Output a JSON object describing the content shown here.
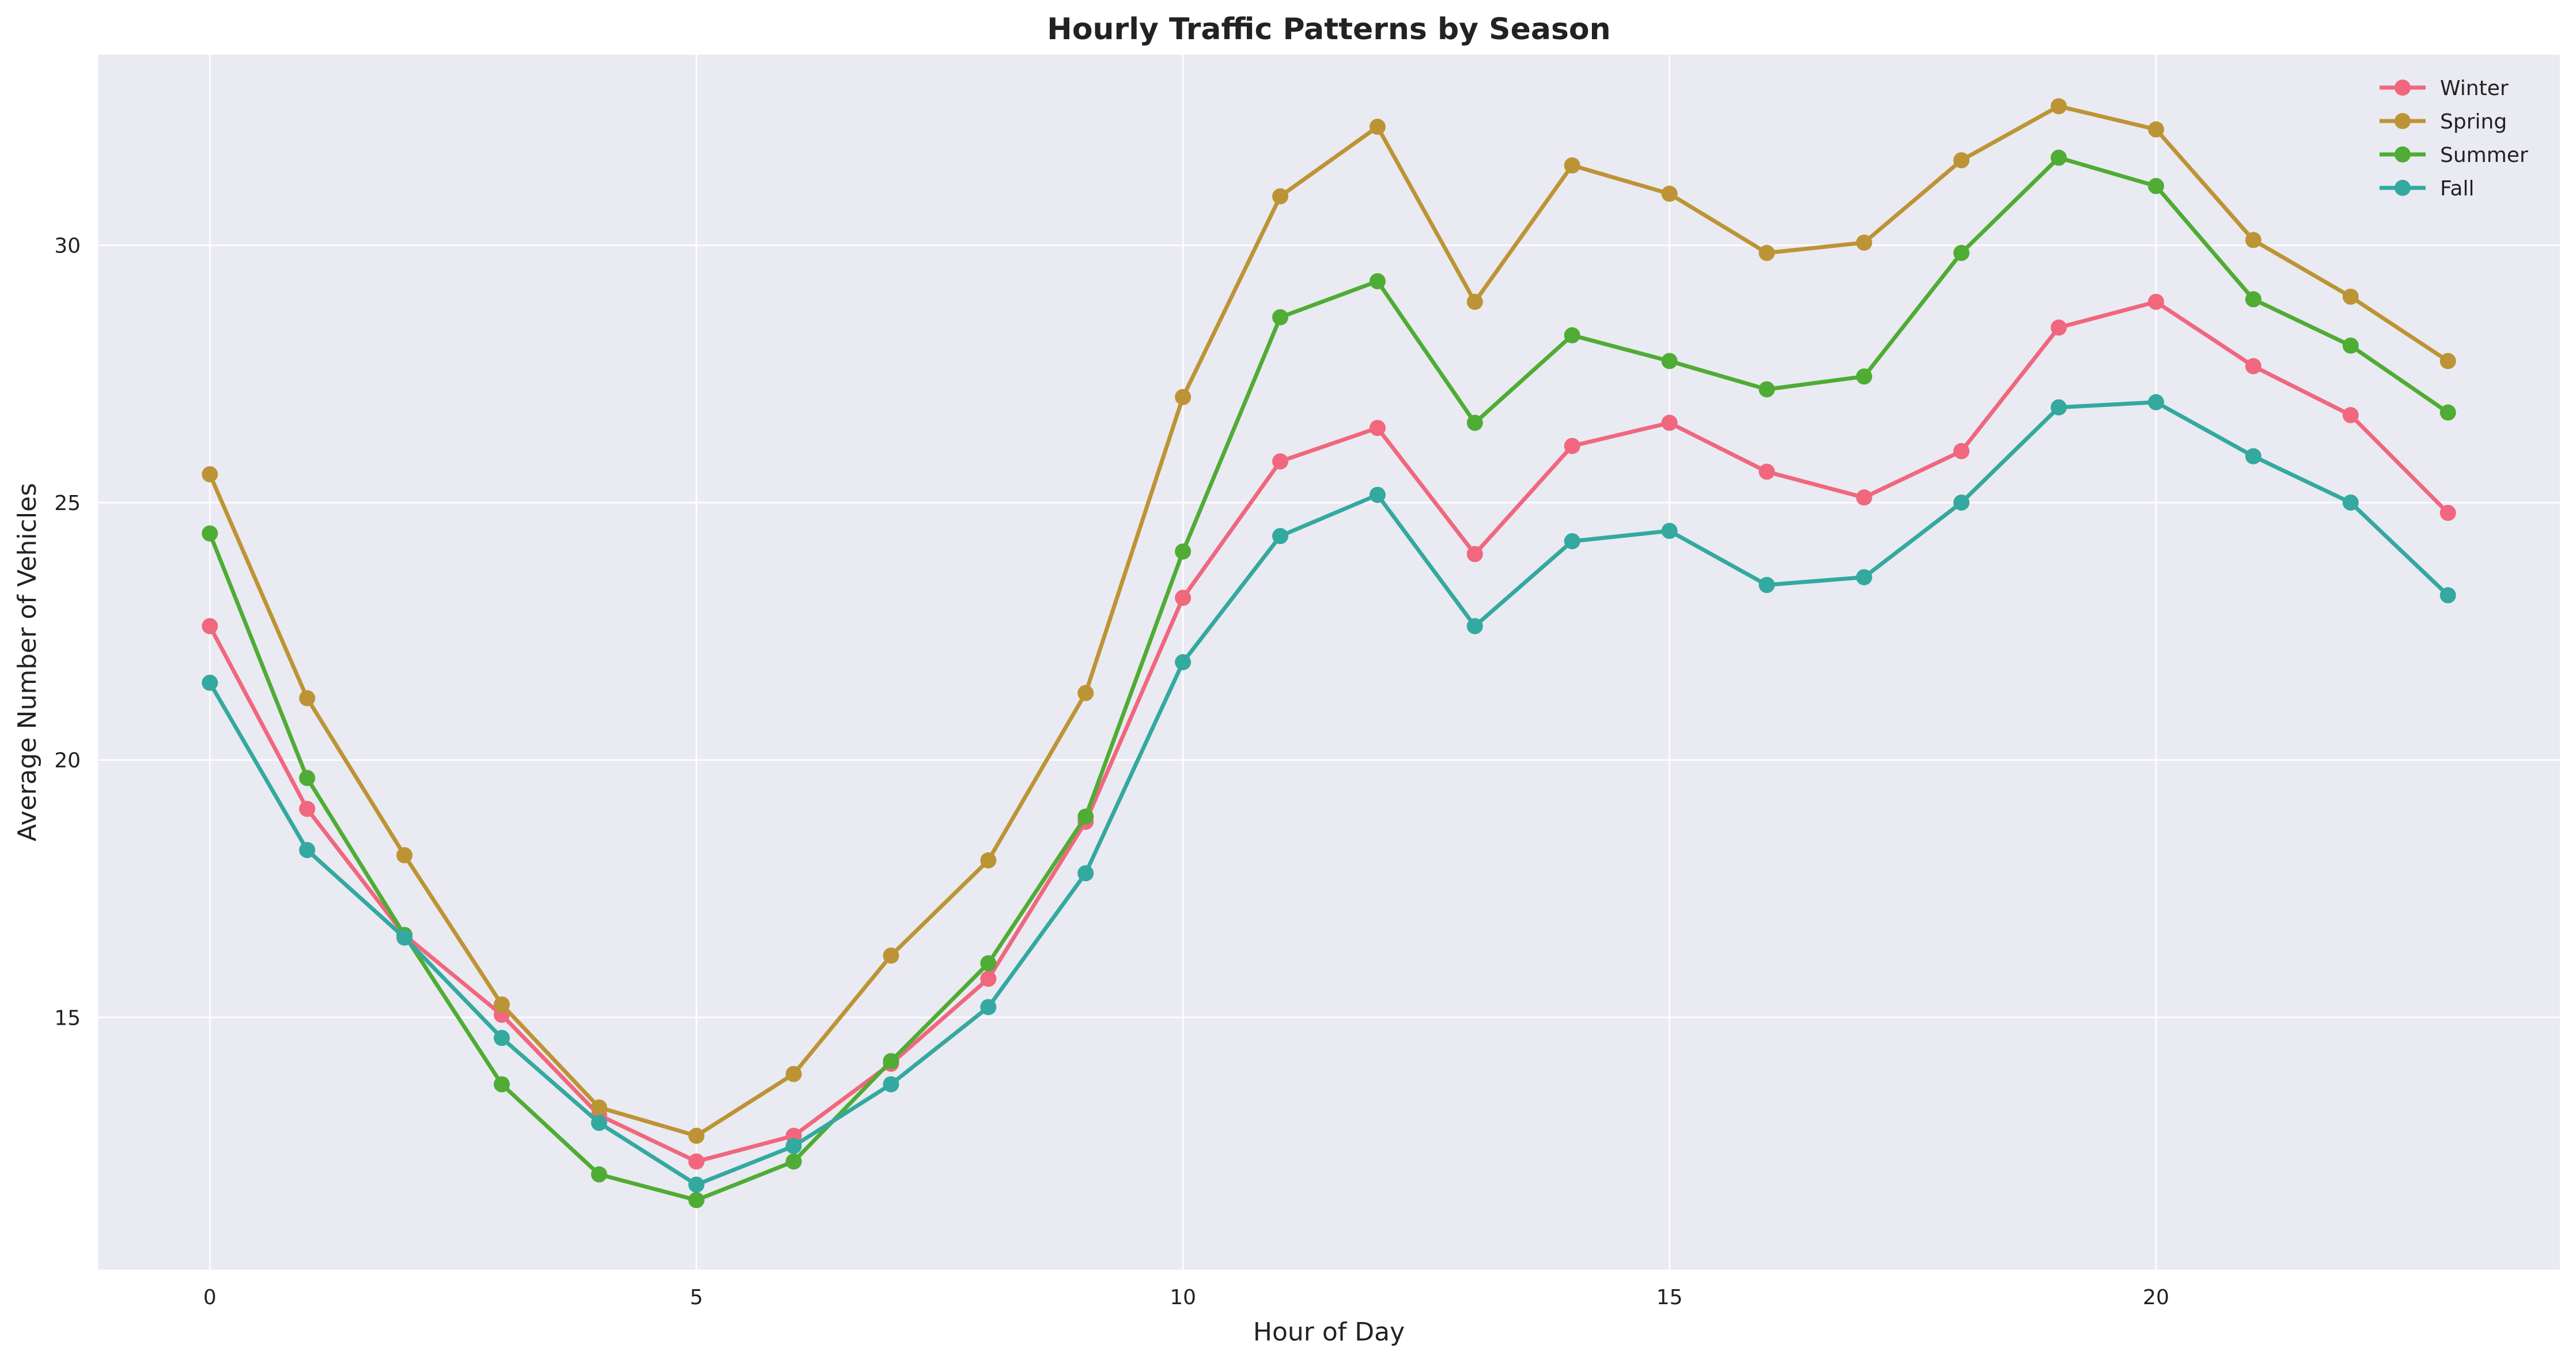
{
  "chart_data": {
    "type": "line",
    "title": "Hourly Traffic Patterns by Season",
    "xlabel": "Hour of Day",
    "ylabel": "Average Number of Vehicles",
    "x": [
      0,
      1,
      2,
      3,
      4,
      5,
      6,
      7,
      8,
      9,
      10,
      11,
      12,
      13,
      14,
      15,
      16,
      17,
      18,
      19,
      20,
      21,
      22,
      23
    ],
    "xlim": [
      -1.15,
      24.15
    ],
    "ylim": [
      10.1,
      33.7
    ],
    "xticks": [
      0,
      5,
      10,
      15,
      20
    ],
    "yticks": [
      15,
      20,
      25,
      30
    ],
    "grid": true,
    "legend_position": "top-right",
    "series": [
      {
        "name": "Winter",
        "color": "#f0677e",
        "values": [
          22.6,
          19.05,
          16.6,
          15.05,
          13.1,
          12.2,
          12.7,
          14.1,
          15.75,
          18.8,
          23.15,
          25.8,
          26.45,
          24.0,
          26.1,
          26.55,
          25.6,
          25.1,
          26.0,
          28.4,
          28.9,
          27.65,
          26.7,
          24.8
        ]
      },
      {
        "name": "Spring",
        "color": "#bd9435",
        "values": [
          25.55,
          21.2,
          18.15,
          15.25,
          13.25,
          12.7,
          13.9,
          16.2,
          18.05,
          21.3,
          27.05,
          30.95,
          32.3,
          28.9,
          31.55,
          31.0,
          29.85,
          30.05,
          31.65,
          32.7,
          32.25,
          30.1,
          29.0,
          27.75
        ]
      },
      {
        "name": "Summer",
        "color": "#4fac34",
        "values": [
          24.4,
          19.65,
          16.6,
          13.7,
          11.95,
          11.45,
          12.2,
          14.15,
          16.05,
          18.9,
          24.05,
          28.6,
          29.3,
          26.55,
          28.25,
          27.75,
          27.2,
          27.45,
          29.85,
          31.7,
          31.15,
          28.95,
          28.05,
          26.75
        ]
      },
      {
        "name": "Fall",
        "color": "#33a99f",
        "values": [
          21.5,
          18.25,
          16.55,
          14.6,
          12.95,
          11.75,
          12.5,
          13.7,
          15.2,
          17.8,
          21.9,
          24.35,
          25.15,
          22.6,
          24.25,
          24.45,
          23.4,
          23.55,
          25.0,
          26.85,
          26.95,
          25.9,
          25.0,
          23.2
        ]
      }
    ]
  }
}
